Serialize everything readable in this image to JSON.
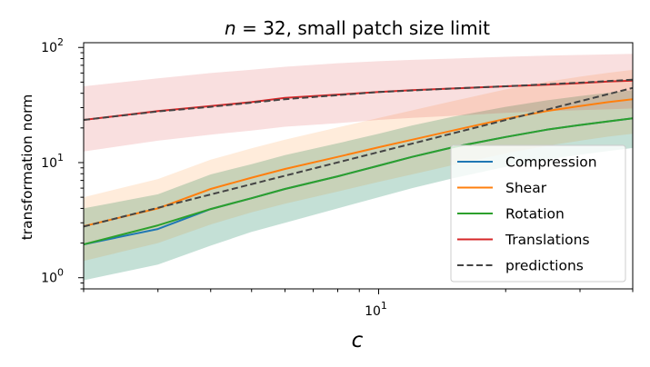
{
  "chart_data": {
    "type": "line",
    "title": "n = 32, small patch size limit",
    "title_math_symbol": "n",
    "title_rest": " = 32, small patch size limit",
    "xlabel": "c",
    "ylabel": "transformation norm",
    "xscale": "log",
    "yscale": "log",
    "xlim": [
      2,
      40
    ],
    "ylim": [
      0.8,
      110
    ],
    "x_tick_labels": [
      {
        "value": 10,
        "base": "10",
        "exp": "1"
      }
    ],
    "y_tick_labels": [
      {
        "value": 1,
        "base": "10",
        "exp": "0"
      },
      {
        "value": 10,
        "base": "10",
        "exp": "1"
      },
      {
        "value": 100,
        "base": "10",
        "exp": "2"
      }
    ],
    "x": [
      2,
      3,
      4,
      5,
      6,
      8,
      10,
      12,
      15,
      20,
      25,
      30,
      35,
      40
    ],
    "series": [
      {
        "name": "Compression",
        "color": "#1f77b4",
        "values": [
          1.95,
          2.65,
          3.95,
          4.9,
          5.9,
          7.6,
          9.4,
          11.2,
          13.6,
          16.7,
          19.3,
          21.2,
          22.8,
          24.2
        ],
        "lower": [
          0.95,
          1.3,
          1.9,
          2.5,
          3.0,
          4.0,
          5.0,
          6.0,
          7.3,
          9.2,
          10.6,
          11.7,
          12.6,
          13.4
        ],
        "upper": [
          4.0,
          5.3,
          7.9,
          9.7,
          11.6,
          14.7,
          17.8,
          21.0,
          25.0,
          30.5,
          34.7,
          37.8,
          40.4,
          42.5
        ]
      },
      {
        "name": "Shear",
        "color": "#ff7f0e",
        "values": [
          2.8,
          4.0,
          5.9,
          7.4,
          8.8,
          11.2,
          13.6,
          15.8,
          19.0,
          24.0,
          28.0,
          31.0,
          33.5,
          35.5
        ],
        "lower": [
          1.4,
          2.0,
          2.9,
          3.7,
          4.4,
          5.6,
          6.8,
          7.9,
          9.5,
          12.0,
          14.0,
          15.5,
          16.8,
          17.8
        ],
        "upper": [
          5.0,
          7.2,
          10.6,
          13.3,
          15.8,
          20.2,
          24.4,
          28.4,
          34.2,
          43.2,
          50.4,
          55.8,
          60.3,
          63.9
        ]
      },
      {
        "name": "Rotation",
        "color": "#2ca02c",
        "values": [
          1.95,
          2.85,
          3.95,
          4.9,
          5.9,
          7.6,
          9.4,
          11.2,
          13.6,
          16.7,
          19.3,
          21.2,
          22.8,
          24.2
        ],
        "lower": [
          0.95,
          1.3,
          1.9,
          2.5,
          3.0,
          4.0,
          5.0,
          6.0,
          7.3,
          9.2,
          10.6,
          11.7,
          12.6,
          13.4
        ],
        "upper": [
          4.0,
          5.3,
          7.9,
          9.7,
          11.6,
          14.7,
          17.8,
          21.0,
          25.0,
          30.5,
          34.7,
          37.8,
          40.4,
          42.5
        ]
      },
      {
        "name": "Translations",
        "color": "#d62728",
        "values": [
          23.5,
          28.0,
          31.0,
          33.5,
          36.5,
          39.0,
          41.0,
          42.5,
          44.0,
          46.0,
          47.5,
          49.0,
          50.5,
          51.5
        ],
        "lower": [
          12.5,
          15.5,
          17.5,
          19.0,
          20.5,
          22.0,
          23.5,
          24.5,
          25.5,
          27.0,
          28.0,
          28.5,
          29.0,
          29.5
        ],
        "upper": [
          46.0,
          54.0,
          60.0,
          64.0,
          68.0,
          73.0,
          76.0,
          78.0,
          80.0,
          83.0,
          85.0,
          86.0,
          87.0,
          88.0
        ]
      }
    ],
    "predictions": [
      {
        "name": "predictions",
        "color": "#444444",
        "x": [
          2,
          40
        ],
        "values": [
          2.78,
          44.5
        ]
      },
      {
        "name": "predictions-translation",
        "color": "#444444",
        "x": [
          2,
          3,
          4,
          6,
          10,
          15,
          20,
          30,
          40
        ],
        "values": [
          23.5,
          27.8,
          30.5,
          35.5,
          41.0,
          44.0,
          46.0,
          49.5,
          52.5
        ]
      }
    ],
    "legend": {
      "position": "lower-right",
      "entries": [
        {
          "label": "Compression",
          "color": "#1f77b4",
          "style": "solid"
        },
        {
          "label": "Shear",
          "color": "#ff7f0e",
          "style": "solid"
        },
        {
          "label": "Rotation",
          "color": "#2ca02c",
          "style": "solid"
        },
        {
          "label": "Translations",
          "color": "#d62728",
          "style": "solid"
        },
        {
          "label": "predictions",
          "color": "#444444",
          "style": "dashed"
        }
      ]
    }
  }
}
